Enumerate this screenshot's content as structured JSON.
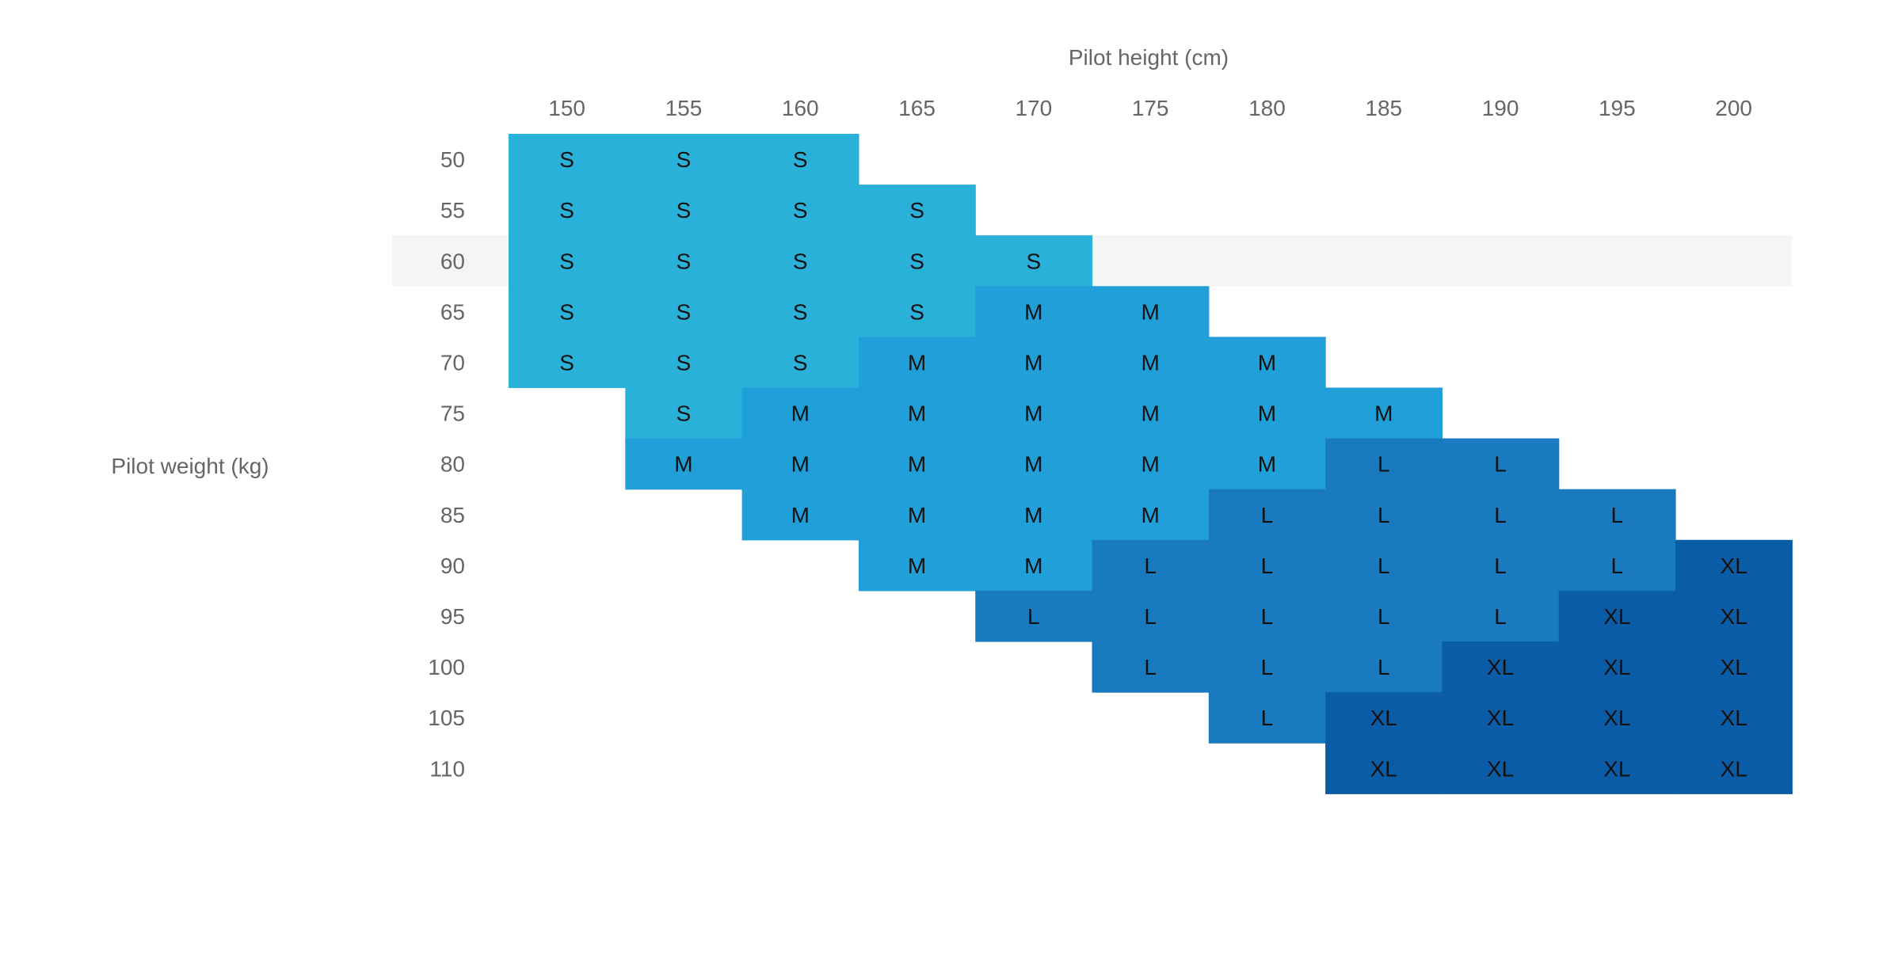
{
  "chart_data": {
    "type": "heatmap",
    "xlabel": "Pilot height (cm)",
    "ylabel": "Pilot weight (kg)",
    "x": [
      150,
      155,
      160,
      165,
      170,
      175,
      180,
      185,
      190,
      195,
      200
    ],
    "y": [
      50,
      55,
      60,
      65,
      70,
      75,
      80,
      85,
      90,
      95,
      100,
      105,
      110
    ],
    "cells": [
      [
        "S",
        "S",
        "S",
        "",
        "",
        "",
        "",
        "",
        "",
        "",
        ""
      ],
      [
        "S",
        "S",
        "S",
        "S",
        "",
        "",
        "",
        "",
        "",
        "",
        ""
      ],
      [
        "S",
        "S",
        "S",
        "S",
        "S",
        "",
        "",
        "",
        "",
        "",
        ""
      ],
      [
        "S",
        "S",
        "S",
        "S",
        "M",
        "M",
        "",
        "",
        "",
        "",
        ""
      ],
      [
        "S",
        "S",
        "S",
        "M",
        "M",
        "M",
        "M",
        "",
        "",
        "",
        ""
      ],
      [
        "",
        "S",
        "M",
        "M",
        "M",
        "M",
        "M",
        "M",
        "",
        "",
        ""
      ],
      [
        "",
        "M",
        "M",
        "M",
        "M",
        "M",
        "M",
        "L",
        "L",
        "",
        ""
      ],
      [
        "",
        "",
        "M",
        "M",
        "M",
        "M",
        "L",
        "L",
        "L",
        "L",
        ""
      ],
      [
        "",
        "",
        "",
        "M",
        "M",
        "L",
        "L",
        "L",
        "L",
        "L",
        "XL"
      ],
      [
        "",
        "",
        "",
        "",
        "L",
        "L",
        "L",
        "L",
        "L",
        "XL",
        "XL"
      ],
      [
        "",
        "",
        "",
        "",
        "",
        "L",
        "L",
        "L",
        "XL",
        "XL",
        "XL"
      ],
      [
        "",
        "",
        "",
        "",
        "",
        "",
        "L",
        "XL",
        "XL",
        "XL",
        "XL"
      ],
      [
        "",
        "",
        "",
        "",
        "",
        "",
        "",
        "XL",
        "XL",
        "XL",
        "XL"
      ]
    ],
    "size_colors": {
      "S": "#29b1d9",
      "M": "#219fd9",
      "L": "#1a7abf",
      "XL": "#0b5ca6"
    },
    "highlighted_row": 60,
    "highlight_color": "#f5f5f5"
  }
}
